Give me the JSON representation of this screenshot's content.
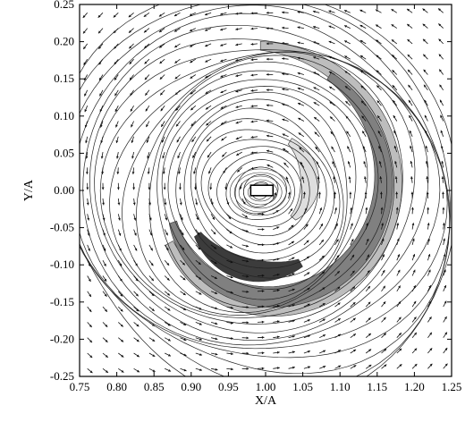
{
  "chart_data": {
    "type": "contour-vector",
    "title": "",
    "xlabel": "X/A",
    "ylabel": "Y/A",
    "xlim": [
      0.75,
      1.25
    ],
    "ylim": [
      -0.25,
      0.25
    ],
    "x_ticks": [
      "0.75",
      "0.80",
      "0.85",
      "0.90",
      "0.95",
      "1.00",
      "1.05",
      "1.10",
      "1.15",
      "1.20",
      "1.25"
    ],
    "y_ticks": [
      "0.25",
      "0.20",
      "0.15",
      "0.10",
      "0.05",
      "0.00",
      "-0.05",
      "-0.10",
      "-0.15",
      "-0.20",
      "-0.25"
    ],
    "vortex_center": [
      0.993,
      0.0
    ],
    "body_marker": {
      "x": [
        0.98,
        1.01
      ],
      "y": [
        -0.007,
        0.007
      ]
    },
    "vector_grid_spacing": 0.0208,
    "grid": false,
    "legend": "none",
    "colors": {
      "contour_line": "#222222",
      "fill_dark": "#3c3c3c",
      "fill_mid": "#808080",
      "fill_light": "#bdbdbd",
      "fill_pale": "#dedede"
    }
  }
}
